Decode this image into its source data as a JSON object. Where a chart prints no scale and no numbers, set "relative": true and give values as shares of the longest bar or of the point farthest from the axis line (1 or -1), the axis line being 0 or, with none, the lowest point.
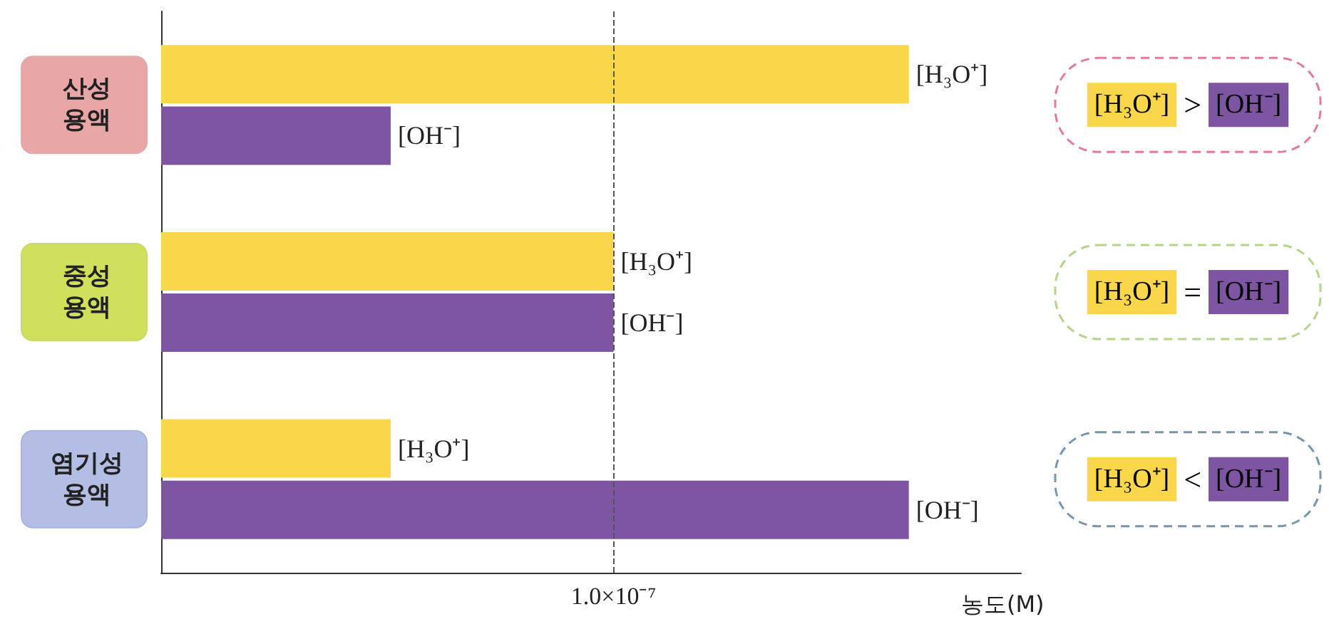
{
  "chart_data": {
    "type": "bar",
    "orientation": "horizontal",
    "relative": true,
    "xlabel": "농도(M)",
    "categories": [
      "산성\n용액",
      "중성\n용액",
      "염기성\n용액"
    ],
    "series": [
      {
        "name": "[H₃O⁺]",
        "color": "#f9d64a",
        "values": [
          1,
          0.605,
          0.307
        ]
      },
      {
        "name": "[OH⁻]",
        "color": "#7e55a3",
        "values": [
          0.307,
          0.605,
          1
        ]
      }
    ],
    "ref_lines": [
      {
        "axis": "x",
        "value": 0.605,
        "label": "1.0×10⁻⁷",
        "line_style": "dashed",
        "color": "#555555"
      }
    ],
    "annotations": [
      "[H₃O⁺] > [OH⁻]",
      "[H₃O⁺] = [OH⁻]",
      "[H₃O⁺] < [OH⁻]"
    ],
    "legend": false,
    "grid": false
  }
}
